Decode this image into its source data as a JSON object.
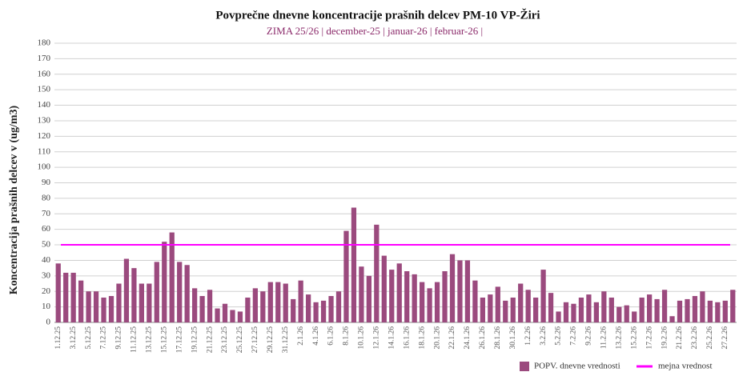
{
  "chart_data": {
    "type": "bar",
    "title": "Povprečne dnevne koncentracije prašnih delcev PM-10 VP-Žiri",
    "subtitle": "ZIMA 25/26 | december-25 |  januar-26 | februar-26 |",
    "y_label": "Koncentracija prašnih delcev v (ug/m3)",
    "categories": [
      "1.12.25",
      null,
      "3.12.25",
      null,
      "5.12.25",
      null,
      "7.12.25",
      null,
      "9.12.25",
      null,
      "11.12.25",
      null,
      "13.12.25",
      null,
      "15.12.25",
      null,
      "17.12.25",
      null,
      "19.12.25",
      null,
      "21.12.25",
      null,
      "23.12.25",
      null,
      "25.12.25",
      null,
      "27.12.25",
      null,
      "29.12.25",
      null,
      "31.12.25",
      null,
      "2.1.26",
      null,
      "4.1.26",
      null,
      "6.1.26",
      null,
      "8.1.26",
      null,
      "10.1.26",
      null,
      "12.1.26",
      null,
      "14.1.26",
      null,
      "16.1.26",
      null,
      "18.1.26",
      null,
      "20.1.26",
      null,
      "22.1.26",
      null,
      "24.1.26",
      null,
      "26.1.26",
      null,
      "28.1.26",
      null,
      "30.1.26",
      null,
      "1.2.26",
      null,
      "3.2.26",
      null,
      "5.2.26",
      null,
      "7.2.26",
      null,
      "9.2.26",
      null,
      "11.2.26",
      null,
      "13.2.26",
      null,
      "15.2.26",
      null,
      "17.2.26",
      null,
      "19.2.26",
      null,
      "21.2.26",
      null,
      "23.2.26",
      null,
      "25.2.26",
      null,
      "27.2.26",
      null
    ],
    "series": [
      {
        "name": "POPV. dnevne vrednosti",
        "color": "#9b4a7e",
        "values": [
          38,
          32,
          32,
          27,
          20,
          20,
          16,
          17,
          25,
          41,
          35,
          25,
          25,
          39,
          52,
          58,
          39,
          37,
          22,
          17,
          21,
          9,
          12,
          8,
          7,
          16,
          22,
          20,
          26,
          26,
          25,
          15,
          27,
          18,
          13,
          14,
          17,
          20,
          59,
          74,
          36,
          30,
          63,
          43,
          34,
          38,
          33,
          31,
          26,
          22,
          26,
          33,
          44,
          40,
          40,
          27,
          16,
          18,
          23,
          14,
          16,
          25,
          21,
          16,
          34,
          19,
          7,
          13,
          12,
          16,
          18,
          13,
          20,
          16,
          10,
          11,
          7,
          16,
          18,
          15,
          21,
          4,
          14,
          15,
          17,
          20,
          14,
          13,
          14,
          21
        ]
      }
    ],
    "limit": {
      "name": "mejna vrednost",
      "value": 50,
      "color": "#ff00ff"
    },
    "ylim": [
      0,
      180
    ],
    "yticks": [
      0,
      10,
      20,
      30,
      40,
      50,
      60,
      70,
      80,
      90,
      100,
      110,
      120,
      130,
      140,
      150,
      160,
      170,
      180
    ],
    "grid": true
  }
}
